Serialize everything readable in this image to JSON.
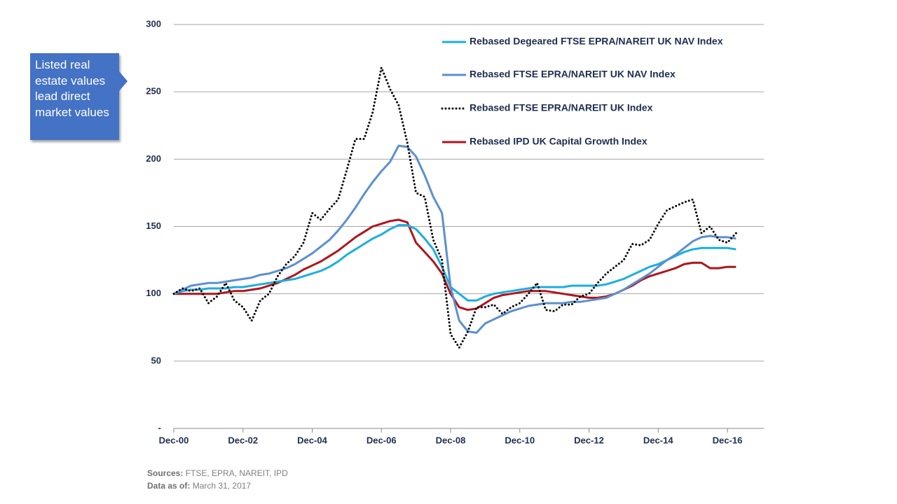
{
  "chart_data": {
    "type": "line",
    "categories": [
      "Dec-00",
      null,
      null,
      null,
      null,
      null,
      null,
      null,
      "Dec-02",
      null,
      null,
      null,
      null,
      null,
      null,
      null,
      "Dec-04",
      null,
      null,
      null,
      null,
      null,
      null,
      null,
      "Dec-06",
      null,
      null,
      null,
      null,
      null,
      null,
      null,
      "Dec-08",
      null,
      null,
      null,
      null,
      null,
      null,
      null,
      "Dec-10",
      null,
      null,
      null,
      null,
      null,
      null,
      null,
      "Dec-12",
      null,
      null,
      null,
      null,
      null,
      null,
      null,
      "Dec-14",
      null,
      null,
      null,
      null,
      null,
      null,
      null,
      "Dec-16",
      null
    ],
    "series": [
      {
        "name": "Rebased Degeared FTSE EPRA/NAREIT UK NAV Index",
        "color": "#1aafe0",
        "line_style": "solid",
        "values": [
          100,
          102,
          103,
          103,
          104,
          104,
          104,
          105,
          105,
          106,
          107,
          108,
          109,
          110,
          111,
          113,
          115,
          117,
          120,
          124,
          129,
          133,
          137,
          141,
          144,
          148,
          151,
          151,
          148,
          141,
          133,
          120,
          105,
          100,
          95,
          95,
          98,
          100,
          101,
          102,
          103,
          104,
          105,
          105,
          105,
          105,
          106,
          106,
          106,
          106,
          107,
          109,
          111,
          114,
          117,
          120,
          122,
          125,
          128,
          131,
          133,
          134,
          134,
          134,
          134,
          133
        ]
      },
      {
        "name": "Rebased FTSE EPRA/NAREIT UK NAV Index",
        "color": "#5b8fd0",
        "line_style": "solid",
        "values": [
          100,
          103,
          106,
          107,
          108,
          108,
          109,
          110,
          111,
          112,
          114,
          115,
          117,
          119,
          122,
          126,
          130,
          135,
          140,
          147,
          155,
          164,
          174,
          183,
          191,
          198,
          210,
          209,
          202,
          188,
          172,
          160,
          105,
          80,
          72,
          71,
          78,
          81,
          84,
          87,
          89,
          91,
          92,
          93,
          93,
          93,
          94,
          94,
          95,
          96,
          97,
          100,
          103,
          107,
          111,
          115,
          120,
          125,
          129,
          134,
          139,
          142,
          143,
          142,
          142,
          141
        ]
      },
      {
        "name": "Rebased FTSE EPRA/NAREIT UK Index",
        "color": "#000000",
        "line_style": "dotted",
        "values": [
          100,
          104,
          102,
          104,
          93,
          98,
          108,
          95,
          90,
          80,
          95,
          100,
          113,
          122,
          128,
          138,
          160,
          155,
          163,
          170,
          192,
          215,
          215,
          235,
          268,
          252,
          240,
          212,
          175,
          172,
          140,
          125,
          70,
          60,
          72,
          90,
          90,
          92,
          85,
          90,
          93,
          100,
          108,
          88,
          87,
          92,
          92,
          98,
          100,
          108,
          115,
          120,
          125,
          137,
          136,
          140,
          152,
          162,
          165,
          168,
          170,
          145,
          150,
          140,
          138,
          145
        ]
      },
      {
        "name": "Rebased IPD UK Capital Growth Index",
        "color": "#b0141c",
        "line_style": "solid",
        "values": [
          100,
          100,
          100,
          100,
          100,
          100,
          101,
          102,
          102,
          103,
          104,
          106,
          108,
          111,
          114,
          118,
          121,
          124,
          128,
          132,
          137,
          142,
          146,
          150,
          152,
          154,
          155,
          153,
          138,
          131,
          124,
          115,
          100,
          90,
          88,
          89,
          93,
          97,
          99,
          100,
          101,
          102,
          102,
          102,
          101,
          100,
          99,
          98,
          97,
          97,
          98,
          100,
          103,
          106,
          110,
          113,
          115,
          117,
          119,
          122,
          123,
          123,
          119,
          119,
          120,
          120
        ]
      }
    ],
    "ylim": [
      0,
      300
    ],
    "yticks": [
      {
        "value": 0,
        "label": "-"
      },
      50,
      100,
      150,
      200,
      250,
      300
    ],
    "grid": true,
    "legend": "top-right",
    "annotation": "Listed real estate values lead direct market values",
    "source": {
      "label": "Sources:",
      "text": "FTSE, EPRA, NAREIT, IPD"
    },
    "date": {
      "label": "Data as of:",
      "text": "March 31, 2017"
    }
  }
}
